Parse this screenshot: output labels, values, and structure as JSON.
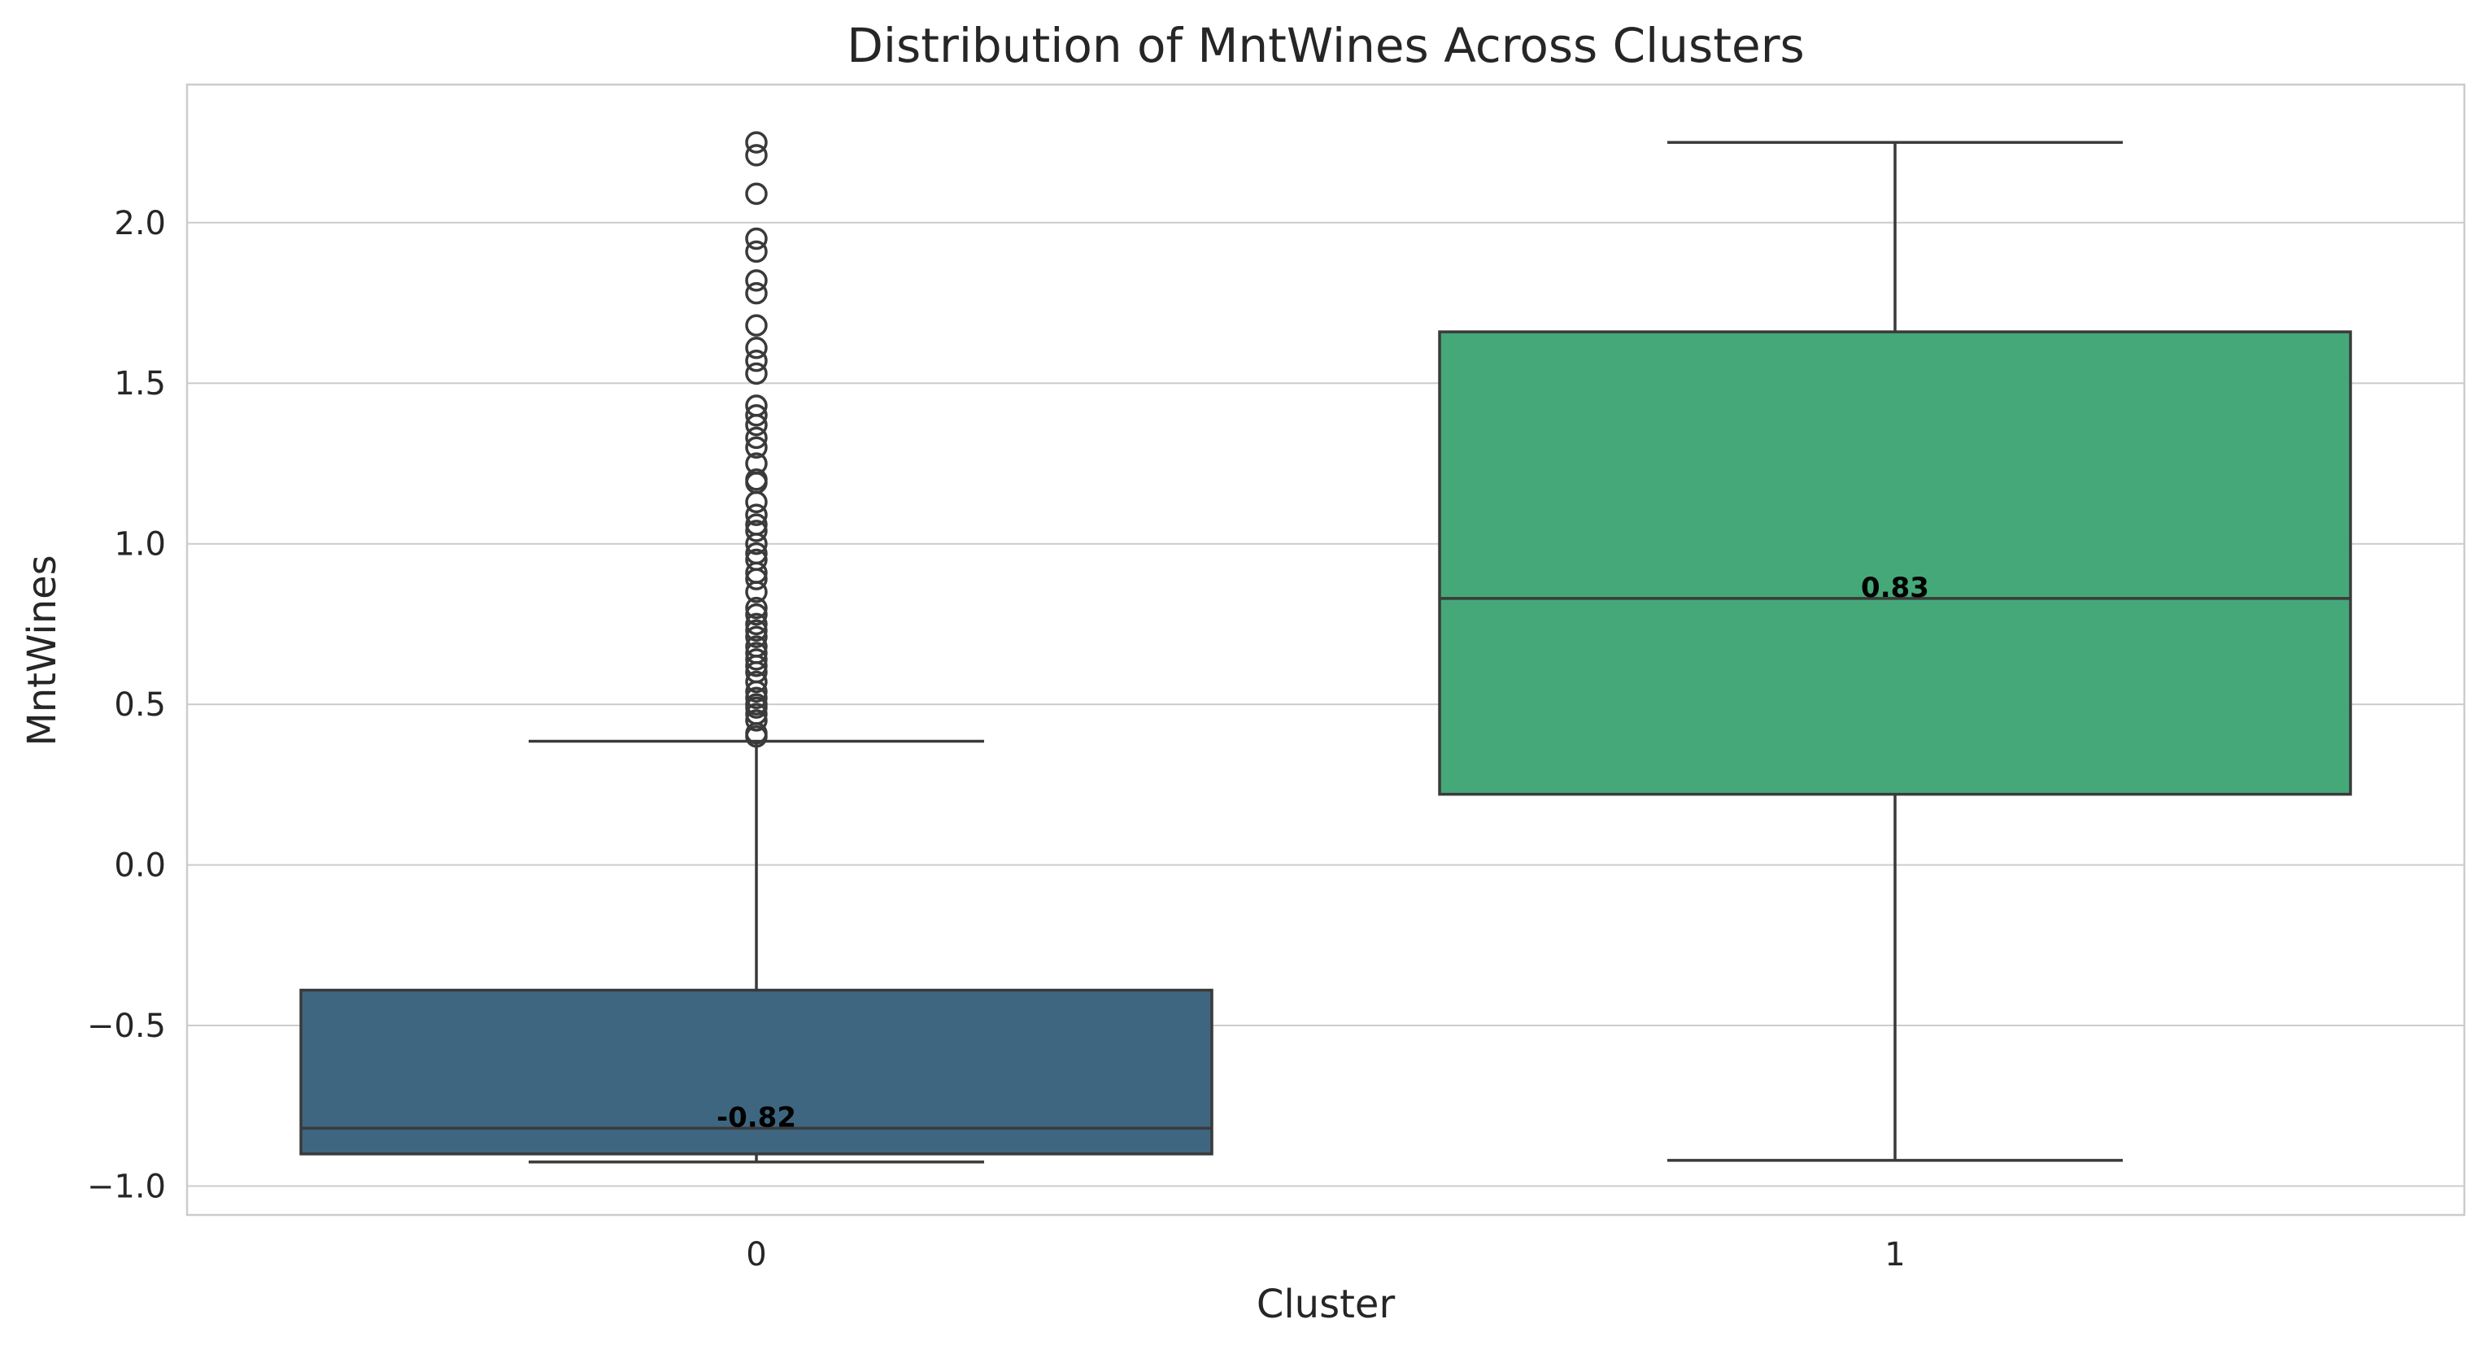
{
  "chart_data": {
    "type": "box",
    "title": "Distribution of MntWines Across Clusters",
    "xlabel": "Cluster",
    "ylabel": "MntWines",
    "ylim": [
      -1.09,
      2.43
    ],
    "yticks": [
      -1.0,
      -0.5,
      0.0,
      0.5,
      1.0,
      1.5,
      2.0
    ],
    "ytick_labels": [
      "−1.0",
      "−0.5",
      "0.0",
      "0.5",
      "1.0",
      "1.5",
      "2.0"
    ],
    "grid": true,
    "categories": [
      "0",
      "1"
    ],
    "boxes": [
      {
        "category": "0",
        "color": "#3e6680",
        "whisker_low": -0.925,
        "q1": -0.9,
        "median": -0.82,
        "q3": -0.39,
        "whisker_high": 0.385,
        "median_label": "-0.82",
        "outliers": [
          0.4,
          0.41,
          0.45,
          0.47,
          0.49,
          0.5,
          0.52,
          0.54,
          0.57,
          0.6,
          0.62,
          0.64,
          0.66,
          0.68,
          0.71,
          0.73,
          0.75,
          0.78,
          0.8,
          0.85,
          0.89,
          0.91,
          0.95,
          0.97,
          1.0,
          1.04,
          1.06,
          1.09,
          1.13,
          1.19,
          1.2,
          1.25,
          1.3,
          1.33,
          1.37,
          1.4,
          1.43,
          1.53,
          1.57,
          1.61,
          1.68,
          1.78,
          1.82,
          1.91,
          1.95,
          2.09,
          2.21,
          2.25
        ]
      },
      {
        "category": "1",
        "color": "#45a878",
        "whisker_low": -0.92,
        "q1": 0.22,
        "median": 0.83,
        "q3": 1.66,
        "whisker_high": 2.25,
        "median_label": "0.83",
        "outliers": []
      }
    ]
  }
}
